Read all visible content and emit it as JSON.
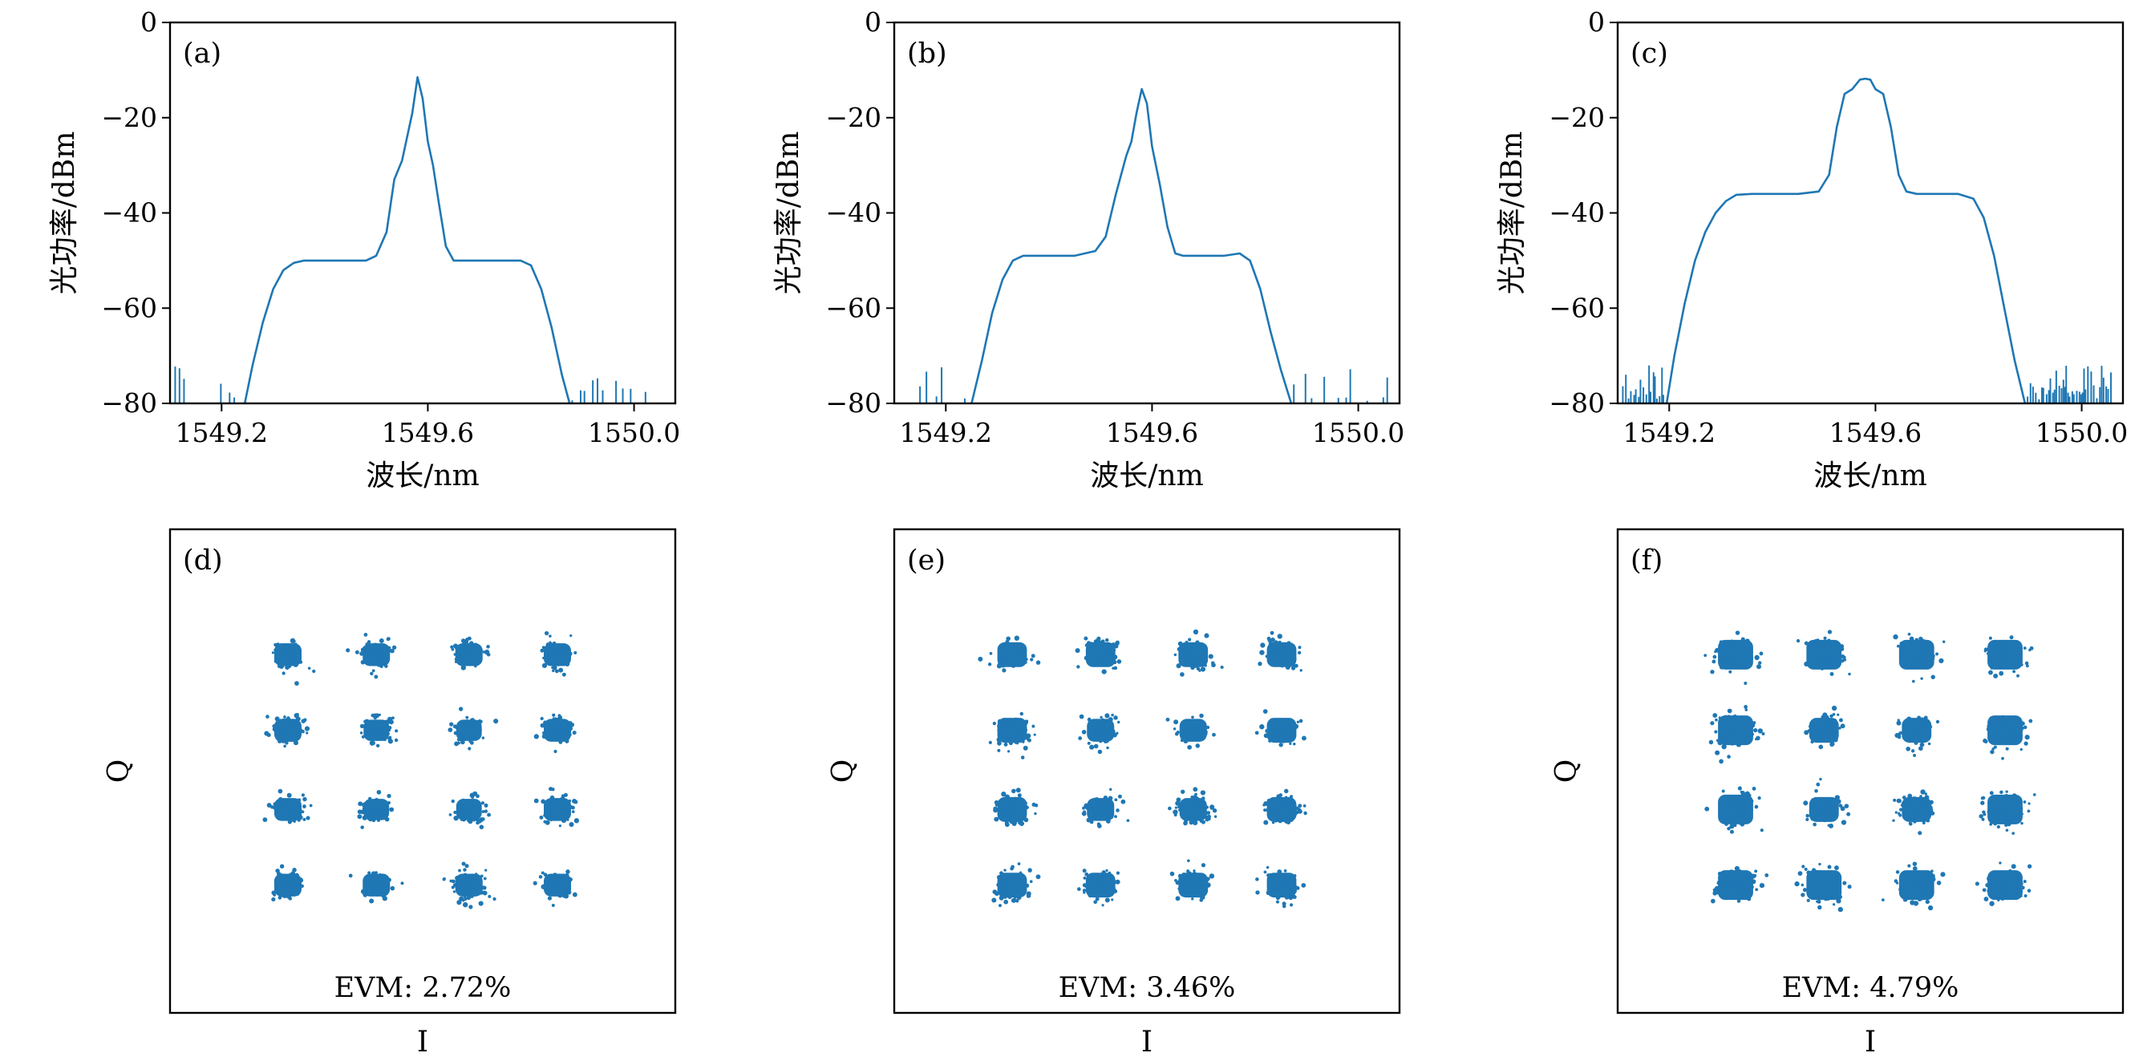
{
  "chart_data": [
    {
      "id": "a",
      "type": "line",
      "panel_label": "(a)",
      "xlabel": "波长/nm",
      "ylabel": "光功率/dBm",
      "xlim": [
        1549.1,
        1550.08
      ],
      "ylim": [
        -80,
        0
      ],
      "xticks": [
        1549.2,
        1549.6,
        1550.0
      ],
      "xtick_labels": [
        "1549.2",
        "1549.6",
        "1550.0"
      ],
      "yticks": [
        0,
        -20,
        -40,
        -60,
        -80
      ],
      "ytick_labels": [
        "0",
        "−20",
        "−40",
        "−60",
        "−80"
      ],
      "grid": false,
      "color": "#1f77b4",
      "x": [
        1549.245,
        1549.26,
        1549.28,
        1549.3,
        1549.32,
        1549.34,
        1549.36,
        1549.4,
        1549.45,
        1549.48,
        1549.5,
        1549.52,
        1549.535,
        1549.55,
        1549.56,
        1549.57,
        1549.58,
        1549.59,
        1549.6,
        1549.61,
        1549.62,
        1549.635,
        1549.65,
        1549.68,
        1549.72,
        1549.76,
        1549.78,
        1549.8,
        1549.82,
        1549.84,
        1549.86,
        1549.875
      ],
      "y": [
        -80,
        -72,
        -63,
        -56,
        -52,
        -50.5,
        -50,
        -50,
        -50,
        -50,
        -49,
        -44,
        -33,
        -29,
        -24,
        -19,
        -11.5,
        -16,
        -25,
        -30,
        -37,
        -47,
        -50,
        -50,
        -50,
        -50,
        -50,
        -51,
        -56,
        -64,
        -74,
        -80
      ]
    },
    {
      "id": "b",
      "type": "line",
      "panel_label": "(b)",
      "xlabel": "波长/nm",
      "ylabel": "光功率/dBm",
      "xlim": [
        1549.1,
        1550.08
      ],
      "ylim": [
        -80,
        0
      ],
      "xticks": [
        1549.2,
        1549.6,
        1550.0
      ],
      "xtick_labels": [
        "1549.2",
        "1549.6",
        "1550.0"
      ],
      "yticks": [
        0,
        -20,
        -40,
        -60,
        -80
      ],
      "ytick_labels": [
        "0",
        "−20",
        "−40",
        "−60",
        "−80"
      ],
      "grid": false,
      "color": "#1f77b4",
      "x": [
        1549.25,
        1549.27,
        1549.29,
        1549.31,
        1549.33,
        1549.35,
        1549.4,
        1549.45,
        1549.49,
        1549.51,
        1549.53,
        1549.55,
        1549.56,
        1549.57,
        1549.58,
        1549.59,
        1549.6,
        1549.615,
        1549.63,
        1549.645,
        1549.66,
        1549.7,
        1549.74,
        1549.77,
        1549.79,
        1549.81,
        1549.83,
        1549.85,
        1549.87
      ],
      "y": [
        -80,
        -71,
        -61,
        -54,
        -50,
        -49,
        -49,
        -49,
        -48,
        -45,
        -36,
        -28,
        -25,
        -19,
        -14,
        -17,
        -26,
        -34,
        -43,
        -48.5,
        -49,
        -49,
        -49,
        -48.5,
        -50,
        -56,
        -65,
        -73,
        -80
      ]
    },
    {
      "id": "c",
      "type": "line",
      "panel_label": "(c)",
      "xlabel": "波长/nm",
      "ylabel": "光功率/dBm",
      "xlim": [
        1549.1,
        1550.08
      ],
      "ylim": [
        -80,
        0
      ],
      "xticks": [
        1549.2,
        1549.6,
        1550.0
      ],
      "xtick_labels": [
        "1549.2",
        "1549.6",
        "1550.0"
      ],
      "yticks": [
        0,
        -20,
        -40,
        -60,
        -80
      ],
      "ytick_labels": [
        "0",
        "−20",
        "−40",
        "−60",
        "−80"
      ],
      "grid": false,
      "color": "#1f77b4",
      "x": [
        1549.195,
        1549.21,
        1549.23,
        1549.25,
        1549.27,
        1549.29,
        1549.31,
        1549.33,
        1549.36,
        1549.4,
        1549.45,
        1549.49,
        1549.51,
        1549.525,
        1549.54,
        1549.555,
        1549.57,
        1549.58,
        1549.59,
        1549.6,
        1549.615,
        1549.63,
        1549.645,
        1549.66,
        1549.68,
        1549.72,
        1549.76,
        1549.79,
        1549.81,
        1549.83,
        1549.85,
        1549.87,
        1549.89
      ],
      "y": [
        -80,
        -70,
        -59,
        -50,
        -44,
        -40,
        -37.5,
        -36.2,
        -36,
        -36,
        -36,
        -35.5,
        -32,
        -22,
        -15,
        -14,
        -12,
        -11.8,
        -12,
        -14,
        -15,
        -22,
        -32,
        -35.5,
        -36,
        -36,
        -36,
        -37,
        -41,
        -49,
        -60,
        -71,
        -80
      ]
    },
    {
      "id": "d",
      "type": "scatter",
      "panel_label": "(d)",
      "xlabel": "I",
      "ylabel": "Q",
      "annotation": "EVM: 2.72%",
      "levels": [
        -3,
        -1,
        1,
        3
      ],
      "spread": [
        0.2,
        0.17,
        0.17,
        0.2
      ],
      "grid": false,
      "color": "#1f77b4"
    },
    {
      "id": "e",
      "type": "scatter",
      "panel_label": "(e)",
      "xlabel": "I",
      "ylabel": "Q",
      "annotation": "EVM: 3.46%",
      "levels": [
        -3,
        -1,
        1,
        3
      ],
      "spread": [
        0.24,
        0.2,
        0.2,
        0.24
      ],
      "grid": false,
      "color": "#1f77b4"
    },
    {
      "id": "f",
      "type": "scatter",
      "panel_label": "(f)",
      "xlabel": "I",
      "ylabel": "Q",
      "annotation": "EVM: 4.79%",
      "levels": [
        -3,
        -1,
        1,
        3
      ],
      "spread": [
        0.34,
        0.24,
        0.24,
        0.34
      ],
      "grid": false,
      "color": "#1f77b4"
    }
  ]
}
